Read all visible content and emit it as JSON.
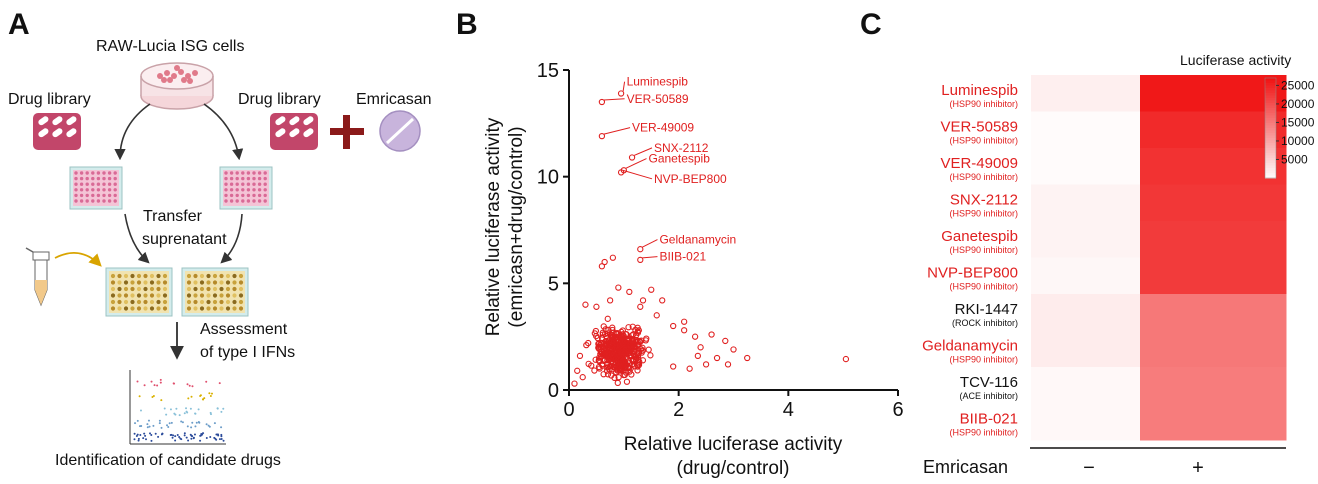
{
  "panels": {
    "a": {
      "letter": "A",
      "cells_label": "RAW-Lucia ISG cells",
      "drug_library_left": "Drug library",
      "drug_library_right": "Drug library",
      "emricasan": "Emricasan",
      "transfer_line1": "Transfer",
      "transfer_line2": "suprenatant",
      "assess_line1": "Assessment",
      "assess_line2": "of  type I IFNs",
      "identify": "Identification of candidate drugs"
    },
    "b": {
      "letter": "B"
    },
    "c": {
      "letter": "C",
      "colorbar_title": "Luciferase activity",
      "colorbar_ticks": [
        "25000",
        "20000",
        "15000",
        "10000",
        "5000"
      ],
      "xlabel": "Emricasan",
      "x_ticks": [
        "−",
        "+"
      ]
    }
  },
  "chart_data": [
    {
      "type": "scatter",
      "xlabel_line1": "Relative luciferase activity",
      "xlabel_line2": "(drug/control)",
      "ylabel_line1": "Relative luciferase activity",
      "ylabel_line2": "(emricasn+drug/control)",
      "xlim": [
        0,
        6
      ],
      "ylim": [
        0,
        15
      ],
      "x_ticks": [
        0,
        2,
        4,
        6
      ],
      "y_ticks": [
        0,
        5,
        10,
        15
      ],
      "color": "#e02020",
      "highlighted": [
        {
          "name": "Luminespib",
          "x": 0.95,
          "y": 13.9
        },
        {
          "name": "VER-50589",
          "x": 0.6,
          "y": 13.5
        },
        {
          "name": "VER-49009",
          "x": 0.6,
          "y": 11.9
        },
        {
          "name": "SNX-2112",
          "x": 1.15,
          "y": 10.9
        },
        {
          "name": "Ganetespib",
          "x": 1.0,
          "y": 10.3
        },
        {
          "name": "NVP-BEP800",
          "x": 0.95,
          "y": 10.2
        },
        {
          "name": "Geldanamycin",
          "x": 1.3,
          "y": 6.6
        },
        {
          "name": "BIIB-021",
          "x": 1.3,
          "y": 6.1
        }
      ],
      "points": [
        [
          0.65,
          6.0
        ],
        [
          0.8,
          6.2
        ],
        [
          0.6,
          5.8
        ],
        [
          0.9,
          4.8
        ],
        [
          1.1,
          4.6
        ],
        [
          1.5,
          4.7
        ],
        [
          1.7,
          4.2
        ],
        [
          0.3,
          4.0
        ],
        [
          0.5,
          3.9
        ],
        [
          1.3,
          3.9
        ],
        [
          1.9,
          3.0
        ],
        [
          2.1,
          2.8
        ],
        [
          2.3,
          2.5
        ],
        [
          2.6,
          2.6
        ],
        [
          2.7,
          1.5
        ],
        [
          2.85,
          2.3
        ],
        [
          3.0,
          1.9
        ],
        [
          3.25,
          1.5
        ],
        [
          2.5,
          1.2
        ],
        [
          2.2,
          1.0
        ],
        [
          1.9,
          1.1
        ],
        [
          5.05,
          1.45
        ],
        [
          0.2,
          1.6
        ],
        [
          0.35,
          2.2
        ],
        [
          0.15,
          0.9
        ],
        [
          0.1,
          0.3
        ],
        [
          0.25,
          0.6
        ],
        [
          2.1,
          3.2
        ],
        [
          1.6,
          3.5
        ],
        [
          2.4,
          2.0
        ],
        [
          2.9,
          1.2
        ],
        [
          2.35,
          1.6
        ],
        [
          1.35,
          4.2
        ],
        [
          0.75,
          4.2
        ]
      ],
      "cluster": {
        "center_x": 0.95,
        "center_y": 1.8,
        "count": 420
      }
    },
    {
      "type": "heatmap",
      "x": [
        "−",
        "+"
      ],
      "colorbar_range": [
        0,
        27000
      ],
      "rows": [
        {
          "name": "Luminespib",
          "target": "(HSP90 inhibitor)",
          "highlight": true,
          "values": [
            1800,
            26500
          ]
        },
        {
          "name": "VER-50589",
          "target": "(HSP90 inhibitor)",
          "highlight": true,
          "values": [
            500,
            24500
          ]
        },
        {
          "name": "VER-49009",
          "target": "(HSP90 inhibitor)",
          "highlight": true,
          "values": [
            500,
            23500
          ]
        },
        {
          "name": "SNX-2112",
          "target": "(HSP90 inhibitor)",
          "highlight": true,
          "values": [
            1400,
            23000
          ]
        },
        {
          "name": "Ganetespib",
          "target": "(HSP90 inhibitor)",
          "highlight": true,
          "values": [
            1400,
            22500
          ]
        },
        {
          "name": "NVP-BEP800",
          "target": "(HSP90 inhibitor)",
          "highlight": true,
          "values": [
            900,
            22500
          ]
        },
        {
          "name": "RKI-1447",
          "target": "(ROCK inhibitor)",
          "highlight": false,
          "values": [
            2200,
            15500
          ]
        },
        {
          "name": "Geldanamycin",
          "target": "(HSP90 inhibitor)",
          "highlight": true,
          "values": [
            2200,
            15500
          ]
        },
        {
          "name": "TCV-116",
          "target": "(ACE inhibitor)",
          "highlight": false,
          "values": [
            800,
            15000
          ]
        },
        {
          "name": "BIIB-021",
          "target": "(HSP90 inhibitor)",
          "highlight": true,
          "values": [
            800,
            15000
          ]
        }
      ]
    }
  ]
}
